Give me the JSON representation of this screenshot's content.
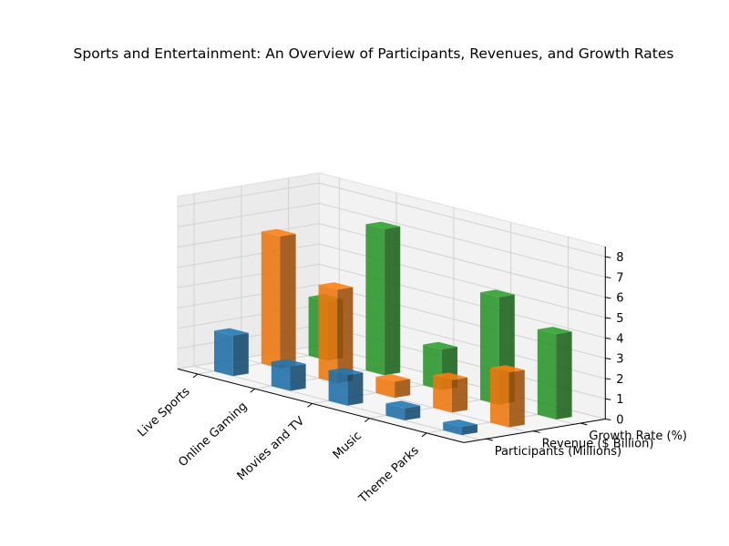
{
  "chart_data": {
    "type": "bar3d",
    "title": "Sports and Entertainment: An Overview of Participants, Revenues, and Growth Rates",
    "categories": [
      "Live Sports",
      "Online Gaming",
      "Movies and TV",
      "Music",
      "Theme Parks"
    ],
    "series": [
      {
        "name": "Participants (Millions)",
        "color": "#1f77b4",
        "values": [
          2.0,
          1.2,
          1.5,
          0.6,
          0.4
        ]
      },
      {
        "name": "Revenue ($ Billion)",
        "color": "#ff7f0e",
        "values": [
          6.5,
          4.6,
          0.8,
          1.6,
          2.7
        ]
      },
      {
        "name": "Growth Rate (%)",
        "color": "#2ca02c",
        "values": [
          2.9,
          7.2,
          2.0,
          5.3,
          4.2
        ]
      }
    ],
    "zticks": [
      0,
      1,
      2,
      3,
      4,
      5,
      6,
      7,
      8
    ],
    "zlim": [
      0,
      8.5
    ],
    "grid": true
  }
}
